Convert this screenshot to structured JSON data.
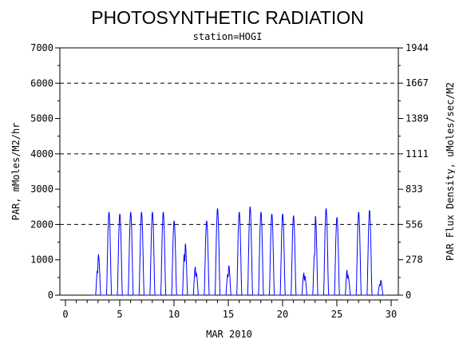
{
  "chart_data": {
    "type": "line",
    "title": "PHOTOSYNTHETIC RADIATION",
    "subtitle": "station=HOGI",
    "xlabel": "MAR 2010",
    "ylabel": "PAR, mMoles/M2/hr",
    "y2label": "PAR Flux Density, uMoles/sec/M2",
    "xlim": [
      0,
      30
    ],
    "ylim": [
      0,
      7000
    ],
    "x_ticks": [
      "0",
      "5",
      "10",
      "15",
      "20",
      "25",
      "30"
    ],
    "y_ticks": [
      "0",
      "1000",
      "2000",
      "3000",
      "4000",
      "5000",
      "6000",
      "7000"
    ],
    "y2_ticks": [
      "0",
      "278",
      "556",
      "833",
      "1111",
      "1389",
      "1667",
      "1944"
    ],
    "y2_tick_values": [
      0,
      278,
      556,
      833,
      1111,
      1389,
      1667,
      1944
    ],
    "y2_scale": 3.6,
    "grid": {
      "horizontal_dashed_at": [
        2000,
        4000,
        6000
      ]
    },
    "line_color": "#0000ff",
    "daily_peaks": [
      {
        "day": 3,
        "peaks": [
          [
            0.2,
            850
          ],
          [
            0.6,
            1200
          ]
        ]
      },
      {
        "day": 4,
        "peaks": [
          [
            0.5,
            2350
          ]
        ]
      },
      {
        "day": 5,
        "peaks": [
          [
            0.5,
            2300
          ]
        ]
      },
      {
        "day": 6,
        "peaks": [
          [
            0.5,
            2350
          ]
        ]
      },
      {
        "day": 7,
        "peaks": [
          [
            0.5,
            2350
          ]
        ]
      },
      {
        "day": 8,
        "peaks": [
          [
            0.5,
            2350
          ]
        ]
      },
      {
        "day": 9,
        "peaks": [
          [
            0.5,
            2350
          ]
        ]
      },
      {
        "day": 10,
        "peaks": [
          [
            0.5,
            2100
          ]
        ]
      },
      {
        "day": 11,
        "peaks": [
          [
            0.3,
            1400
          ],
          [
            0.6,
            1550
          ]
        ]
      },
      {
        "day": 12,
        "peaks": [
          [
            0.4,
            900
          ],
          [
            0.6,
            700
          ]
        ]
      },
      {
        "day": 13,
        "peaks": [
          [
            0.5,
            2100
          ]
        ]
      },
      {
        "day": 14,
        "peaks": [
          [
            0.5,
            2450
          ]
        ]
      },
      {
        "day": 15,
        "peaks": [
          [
            0.3,
            700
          ],
          [
            0.6,
            900
          ]
        ]
      },
      {
        "day": 16,
        "peaks": [
          [
            0.5,
            2350
          ]
        ]
      },
      {
        "day": 17,
        "peaks": [
          [
            0.5,
            2500
          ]
        ]
      },
      {
        "day": 18,
        "peaks": [
          [
            0.5,
            2350
          ]
        ]
      },
      {
        "day": 19,
        "peaks": [
          [
            0.5,
            2300
          ]
        ]
      },
      {
        "day": 20,
        "peaks": [
          [
            0.5,
            2300
          ]
        ]
      },
      {
        "day": 21,
        "peaks": [
          [
            0.5,
            2250
          ]
        ]
      },
      {
        "day": 22,
        "peaks": [
          [
            0.4,
            700
          ],
          [
            0.6,
            600
          ]
        ]
      },
      {
        "day": 23,
        "peaks": [
          [
            0.3,
            1500
          ],
          [
            0.5,
            2300
          ]
        ]
      },
      {
        "day": 24,
        "peaks": [
          [
            0.5,
            2450
          ]
        ]
      },
      {
        "day": 25,
        "peaks": [
          [
            0.5,
            2200
          ]
        ]
      },
      {
        "day": 26,
        "peaks": [
          [
            0.3,
            900
          ],
          [
            0.6,
            550
          ]
        ]
      },
      {
        "day": 27,
        "peaks": [
          [
            0.5,
            2350
          ]
        ]
      },
      {
        "day": 28,
        "peaks": [
          [
            0.5,
            2400
          ]
        ]
      },
      {
        "day": 29,
        "peaks": [
          [
            0.3,
            350
          ],
          [
            0.6,
            450
          ]
        ]
      }
    ]
  }
}
